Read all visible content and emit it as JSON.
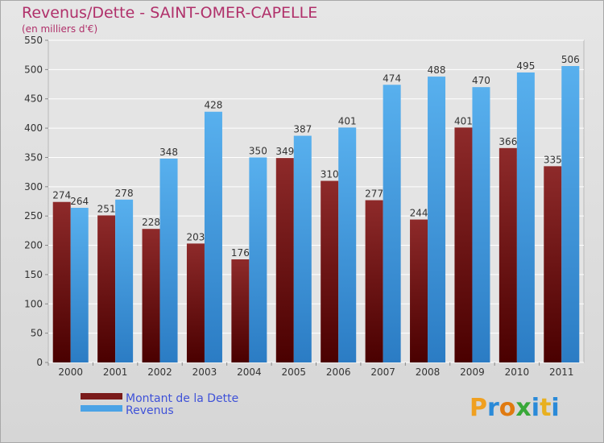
{
  "chart_data": {
    "type": "bar",
    "title": "Revenus/Dette - SAINT-OMER-CAPELLE",
    "subtitle": "(en milliers d'€)",
    "categories": [
      "2000",
      "2001",
      "2002",
      "2003",
      "2004",
      "2005",
      "2006",
      "2007",
      "2008",
      "2009",
      "2010",
      "2011"
    ],
    "series": [
      {
        "name": "Montant de la Dette",
        "color": "#7a1a1a",
        "values": [
          274,
          251,
          228,
          203,
          176,
          349,
          310,
          277,
          244,
          401,
          366,
          335
        ]
      },
      {
        "name": "Revenus",
        "color": "#4aa3e6",
        "values": [
          264,
          278,
          348,
          428,
          350,
          387,
          401,
          474,
          488,
          470,
          495,
          506
        ]
      }
    ],
    "ylim": [
      0,
      550
    ],
    "yticks": [
      0,
      50,
      100,
      150,
      200,
      250,
      300,
      350,
      400,
      450,
      500,
      550
    ],
    "grid": true,
    "legend": "bottom-left"
  },
  "brand": {
    "logo_text": "Proxiti"
  }
}
